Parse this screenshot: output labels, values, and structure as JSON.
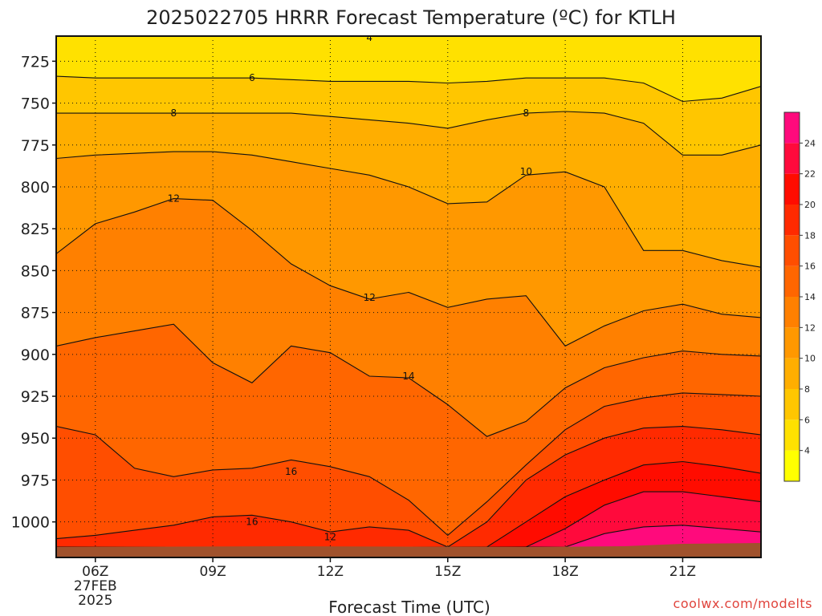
{
  "title": "2025022705 HRRR Forecast Temperature (ºC) for KTLH",
  "credit": "coolwx.com/modelts",
  "chart_data": {
    "type": "heatmap",
    "title": "2025022705 HRRR Forecast Temperature (ºC) for KTLH",
    "xlabel": "Forecast Time (UTC)",
    "ylabel": "",
    "x_hours": [
      5,
      6,
      7,
      8,
      9,
      10,
      11,
      12,
      13,
      14,
      15,
      16,
      17,
      18,
      19,
      20,
      21,
      22,
      23
    ],
    "xlim": [
      5,
      23
    ],
    "ylim": [
      710,
      1015
    ],
    "y_ticks": [
      725,
      750,
      775,
      800,
      825,
      850,
      875,
      900,
      925,
      950,
      975,
      1000
    ],
    "x_ticks": [
      {
        "hour": 6,
        "label": "06Z",
        "sub": [
          "27FEB",
          "2025"
        ]
      },
      {
        "hour": 9,
        "label": "09Z",
        "sub": []
      },
      {
        "hour": 12,
        "label": "12Z",
        "sub": []
      },
      {
        "hour": 15,
        "label": "15Z",
        "sub": []
      },
      {
        "hour": 18,
        "label": "18Z",
        "sub": []
      },
      {
        "hour": 21,
        "label": "21Z",
        "sub": []
      }
    ],
    "contour_levels": [
      4,
      6,
      8,
      10,
      12,
      14,
      16,
      18,
      20,
      22,
      24
    ],
    "isotherms": [
      {
        "level": 4,
        "p": [
          710,
          710,
          710,
          710,
          710,
          710,
          710,
          710,
          710,
          710,
          710,
          710,
          710,
          710,
          710,
          710,
          710,
          710,
          710
        ]
      },
      {
        "level": 6,
        "p": [
          734,
          735,
          735,
          735,
          735,
          735,
          736,
          737,
          737,
          737,
          738,
          737,
          735,
          735,
          735,
          738,
          749,
          747,
          740
        ]
      },
      {
        "level": 8,
        "p": [
          756,
          756,
          756,
          756,
          756,
          756,
          756,
          758,
          760,
          762,
          765,
          760,
          756,
          755,
          756,
          762,
          781,
          781,
          775
        ]
      },
      {
        "level": 10,
        "p": [
          783,
          781,
          780,
          779,
          779,
          781,
          785,
          789,
          793,
          800,
          810,
          809,
          793,
          791,
          800,
          838,
          838,
          844,
          848
        ]
      },
      {
        "level": 12,
        "p": [
          840,
          822,
          815,
          807,
          808,
          826,
          846,
          859,
          867,
          863,
          872,
          867,
          865,
          895,
          883,
          874,
          870,
          876,
          878
        ]
      },
      {
        "level": 14,
        "p": [
          895,
          890,
          886,
          882,
          905,
          917,
          895,
          899,
          913,
          914,
          930,
          949,
          940,
          920,
          908,
          902,
          898,
          900,
          901
        ]
      },
      {
        "level": 16,
        "p": [
          943,
          948,
          968,
          973,
          969,
          968,
          963,
          967,
          973,
          987,
          1008,
          988,
          966,
          945,
          931,
          926,
          923,
          924,
          925
        ]
      },
      {
        "level": 18,
        "p": [
          1010,
          1008,
          1005,
          1002,
          997,
          996,
          1000,
          1006,
          1003,
          1005,
          1015,
          1000,
          975,
          960,
          950,
          944,
          943,
          945,
          948
        ]
      },
      {
        "level": 20,
        "p": [
          1015,
          1015,
          1015,
          1015,
          1015,
          1015,
          1015,
          1015,
          1015,
          1015,
          1015,
          1015,
          1000,
          985,
          975,
          966,
          964,
          967,
          971
        ]
      },
      {
        "level": 22,
        "p": [
          1015,
          1015,
          1015,
          1015,
          1015,
          1015,
          1015,
          1015,
          1015,
          1015,
          1015,
          1015,
          1015,
          1004,
          990,
          982,
          982,
          985,
          988
        ]
      },
      {
        "level": 24,
        "p": [
          1015,
          1015,
          1015,
          1015,
          1015,
          1015,
          1015,
          1015,
          1015,
          1015,
          1015,
          1015,
          1015,
          1015,
          1007,
          1003,
          1002,
          1004,
          1006
        ]
      }
    ],
    "contour_labels": [
      {
        "level": 4,
        "hour": 13.0,
        "p": 711
      },
      {
        "level": 6,
        "hour": 10.0,
        "p": 735
      },
      {
        "level": 8,
        "hour": 8.0,
        "p": 756
      },
      {
        "level": 8,
        "hour": 17.0,
        "p": 756
      },
      {
        "level": 10,
        "hour": 17.0,
        "p": 791
      },
      {
        "level": 12,
        "hour": 8.0,
        "p": 807
      },
      {
        "level": 12,
        "hour": 13.0,
        "p": 866
      },
      {
        "level": 14,
        "hour": 14.0,
        "p": 913
      },
      {
        "level": 16,
        "hour": 10.0,
        "p": 1000
      },
      {
        "level": 16,
        "hour": 11.0,
        "p": 970
      },
      {
        "level": 12,
        "hour": 12.0,
        "p": 1009
      }
    ],
    "ground_pressure": 1015,
    "colorbar": {
      "levels": [
        2,
        4,
        6,
        8,
        10,
        12,
        14,
        16,
        18,
        20,
        22,
        24,
        26
      ],
      "tick_labels": [
        4,
        6,
        8,
        10,
        12,
        14,
        16,
        18,
        20,
        22,
        24
      ],
      "colors": [
        "#ffff00",
        "#ffe100",
        "#ffc600",
        "#ffae00",
        "#ff9800",
        "#ff8000",
        "#ff6600",
        "#ff4e00",
        "#ff2a00",
        "#ff0c00",
        "#ff0a3c",
        "#ff0a7c"
      ]
    }
  }
}
